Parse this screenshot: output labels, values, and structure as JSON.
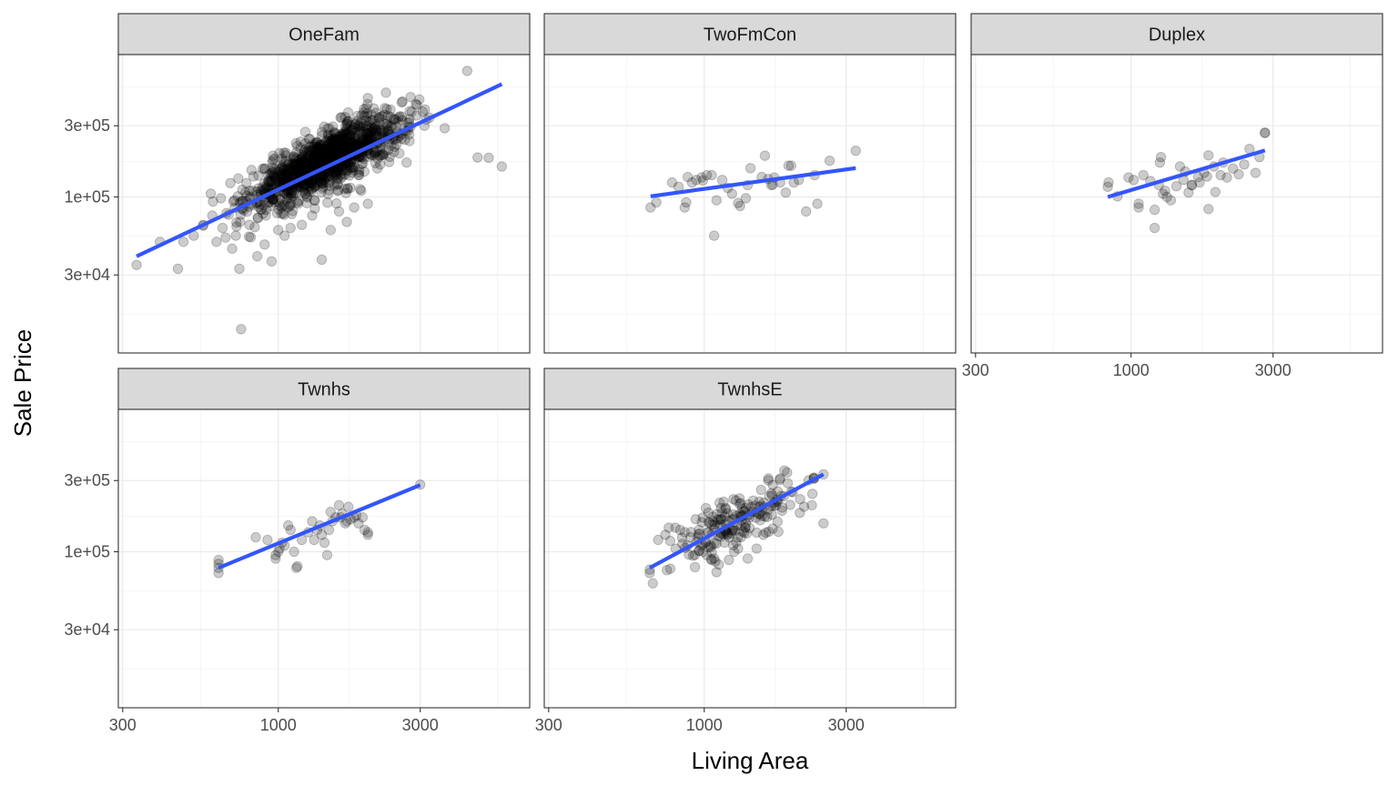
{
  "chart_data": {
    "type": "scatter",
    "facet_by": "Bldg_Type",
    "xlabel": "Living Area",
    "ylabel": "Sale Price",
    "x_scale": "log10",
    "y_scale": "log10",
    "xlim": [
      290,
      7000
    ],
    "ylim": [
      9000,
      900000
    ],
    "x_ticks": [
      300,
      1000,
      3000
    ],
    "x_tick_labels": [
      "300",
      "1000",
      "3000"
    ],
    "y_ticks": [
      30000,
      100000,
      300000
    ],
    "y_tick_labels": [
      "3e+04",
      "1e+05",
      "3e+05"
    ],
    "point_color": "#000000",
    "point_alpha": 0.2,
    "fit_line_color": "#3355ff",
    "fit_method": "lm",
    "panels": [
      {
        "name": "OneFam",
        "fit": {
          "x": [
            334,
            5642
          ],
          "y": [
            40000,
            570000
          ]
        },
        "cloud": {
          "n": 1150,
          "x_center": 1450,
          "x_log_sd": 0.13,
          "slope": 0.95,
          "y_anchor": 175000,
          "y_log_sd": 0.095
        },
        "points": [
          [
            5642,
            160000
          ],
          [
            5095,
            183000
          ],
          [
            4676,
            184000
          ],
          [
            4316,
            700000
          ],
          [
            3627,
            289000
          ],
          [
            3222,
            340000
          ],
          [
            2980,
            450000
          ],
          [
            2700,
            170000
          ],
          [
            2500,
            225000
          ],
          [
            2450,
            200000
          ],
          [
            2200,
            165000
          ],
          [
            2100,
            190000
          ],
          [
            3100,
            300000
          ],
          [
            2900,
            420000
          ],
          [
            2600,
            430000
          ],
          [
            2300,
            500000
          ],
          [
            2000,
            460000
          ],
          [
            334,
            35000
          ],
          [
            400,
            50000
          ],
          [
            460,
            33000
          ],
          [
            480,
            50000
          ],
          [
            520,
            55000
          ],
          [
            560,
            65000
          ],
          [
            600,
            75000
          ],
          [
            620,
            50000
          ],
          [
            650,
            62000
          ],
          [
            700,
            45000
          ],
          [
            720,
            55000
          ],
          [
            740,
            33000
          ],
          [
            750,
            13000
          ],
          [
            760,
            84000
          ],
          [
            800,
            65000
          ],
          [
            820,
            110000
          ],
          [
            850,
            40000
          ],
          [
            900,
            48000
          ],
          [
            950,
            37000
          ],
          [
            1000,
            60000
          ],
          [
            1050,
            55000
          ],
          [
            1100,
            62000
          ],
          [
            1200,
            65000
          ],
          [
            1300,
            75000
          ],
          [
            1400,
            38000
          ],
          [
            1500,
            60000
          ],
          [
            1600,
            80000
          ],
          [
            1800,
            85000
          ],
          [
            2000,
            90000
          ],
          [
            1700,
            68000
          ],
          [
            1900,
            110000
          ]
        ]
      },
      {
        "name": "TwoFmCon",
        "fit": {
          "x": [
            660,
            3230
          ],
          "y": [
            101000,
            156000
          ]
        },
        "points": [
          [
            660,
            85000
          ],
          [
            690,
            92000
          ],
          [
            780,
            125000
          ],
          [
            820,
            117000
          ],
          [
            860,
            85000
          ],
          [
            870,
            92000
          ],
          [
            880,
            136000
          ],
          [
            910,
            125000
          ],
          [
            940,
            130000
          ],
          [
            980,
            135000
          ],
          [
            990,
            129000
          ],
          [
            1020,
            140000
          ],
          [
            1060,
            140000
          ],
          [
            1080,
            55000
          ],
          [
            1100,
            95000
          ],
          [
            1150,
            130000
          ],
          [
            1200,
            115000
          ],
          [
            1240,
            105000
          ],
          [
            1300,
            91000
          ],
          [
            1320,
            87000
          ],
          [
            1380,
            98000
          ],
          [
            1400,
            120000
          ],
          [
            1430,
            156000
          ],
          [
            1560,
            136000
          ],
          [
            1600,
            189000
          ],
          [
            1640,
            132000
          ],
          [
            1680,
            120000
          ],
          [
            1700,
            121000
          ],
          [
            1720,
            135000
          ],
          [
            1800,
            125000
          ],
          [
            1880,
            107000
          ],
          [
            1920,
            162000
          ],
          [
            1960,
            162000
          ],
          [
            2000,
            125000
          ],
          [
            2080,
            130000
          ],
          [
            2200,
            80000
          ],
          [
            2350,
            140000
          ],
          [
            2400,
            90000
          ],
          [
            2640,
            175000
          ],
          [
            3230,
            204000
          ]
        ]
      },
      {
        "name": "Duplex",
        "fit": {
          "x": [
            835,
            2818
          ],
          "y": [
            100000,
            205000
          ]
        },
        "points": [
          [
            835,
            117000
          ],
          [
            840,
            125000
          ],
          [
            900,
            101000
          ],
          [
            980,
            135000
          ],
          [
            1020,
            130000
          ],
          [
            1060,
            90000
          ],
          [
            1060,
            85000
          ],
          [
            1100,
            140000
          ],
          [
            1160,
            128000
          ],
          [
            1200,
            82000
          ],
          [
            1200,
            62000
          ],
          [
            1240,
            120000
          ],
          [
            1250,
            170000
          ],
          [
            1260,
            185000
          ],
          [
            1280,
            105000
          ],
          [
            1300,
            110000
          ],
          [
            1320,
            100000
          ],
          [
            1360,
            95000
          ],
          [
            1420,
            118000
          ],
          [
            1460,
            160000
          ],
          [
            1500,
            130000
          ],
          [
            1520,
            148000
          ],
          [
            1560,
            107000
          ],
          [
            1600,
            120000
          ],
          [
            1600,
            120000
          ],
          [
            1680,
            136000
          ],
          [
            1700,
            125000
          ],
          [
            1760,
            145000
          ],
          [
            1800,
            137000
          ],
          [
            1820,
            83000
          ],
          [
            1820,
            190000
          ],
          [
            1900,
            160000
          ],
          [
            1920,
            108000
          ],
          [
            2000,
            140000
          ],
          [
            2040,
            170000
          ],
          [
            2100,
            135000
          ],
          [
            2200,
            155000
          ],
          [
            2300,
            142000
          ],
          [
            2400,
            165000
          ],
          [
            2500,
            210000
          ],
          [
            2620,
            145000
          ],
          [
            2700,
            185000
          ],
          [
            2818,
            268000
          ],
          [
            2818,
            270000
          ]
        ]
      },
      {
        "name": "Twnhs",
        "fit": {
          "x": [
            630,
            3000
          ],
          "y": [
            78000,
            280000
          ]
        },
        "points": [
          [
            630,
            72000
          ],
          [
            630,
            78000
          ],
          [
            630,
            83000
          ],
          [
            630,
            88000
          ],
          [
            840,
            125000
          ],
          [
            920,
            120000
          ],
          [
            980,
            95000
          ],
          [
            980,
            90000
          ],
          [
            1000,
            100000
          ],
          [
            1010,
            105000
          ],
          [
            1030,
            115000
          ],
          [
            1050,
            110000
          ],
          [
            1080,
            150000
          ],
          [
            1100,
            140000
          ],
          [
            1130,
            100000
          ],
          [
            1150,
            78000
          ],
          [
            1160,
            80000
          ],
          [
            1200,
            120000
          ],
          [
            1260,
            135000
          ],
          [
            1300,
            160000
          ],
          [
            1320,
            120000
          ],
          [
            1350,
            140000
          ],
          [
            1380,
            150000
          ],
          [
            1400,
            130000
          ],
          [
            1430,
            115000
          ],
          [
            1460,
            95000
          ],
          [
            1480,
            140000
          ],
          [
            1500,
            185000
          ],
          [
            1520,
            160000
          ],
          [
            1560,
            170000
          ],
          [
            1600,
            205000
          ],
          [
            1620,
            170000
          ],
          [
            1640,
            180000
          ],
          [
            1680,
            155000
          ],
          [
            1700,
            160000
          ],
          [
            1720,
            200000
          ],
          [
            1750,
            165000
          ],
          [
            1800,
            170000
          ],
          [
            1830,
            175000
          ],
          [
            1860,
            155000
          ],
          [
            1920,
            170000
          ],
          [
            1950,
            140000
          ],
          [
            2000,
            130000
          ],
          [
            2000,
            135000
          ],
          [
            3000,
            282000
          ]
        ]
      },
      {
        "name": "TwnhsE",
        "fit": {
          "x": [
            656,
            2516
          ],
          "y": [
            78000,
            330000
          ]
        },
        "cloud": {
          "n": 170,
          "x_center": 1320,
          "x_log_sd": 0.11,
          "slope": 1.0,
          "y_anchor": 165000,
          "y_log_sd": 0.09
        },
        "points": [
          [
            656,
            72000
          ],
          [
            656,
            76000
          ],
          [
            700,
            120000
          ],
          [
            740,
            130000
          ],
          [
            760,
            145000
          ],
          [
            800,
            145000
          ],
          [
            830,
            140000
          ],
          [
            860,
            135000
          ],
          [
            880,
            110000
          ],
          [
            900,
            125000
          ],
          [
            930,
            95000
          ],
          [
            960,
            140000
          ],
          [
            990,
            100000
          ],
          [
            1020,
            95000
          ],
          [
            1060,
            88000
          ],
          [
            1080,
            90000
          ],
          [
            1090,
            86000
          ],
          [
            1100,
            73000
          ],
          [
            1120,
            82000
          ],
          [
            1200,
            130000
          ],
          [
            1260,
            100000
          ],
          [
            1300,
            105000
          ],
          [
            1400,
            90000
          ],
          [
            1500,
            105000
          ],
          [
            1580,
            130000
          ],
          [
            1700,
            280000
          ],
          [
            1800,
            310000
          ],
          [
            1860,
            350000
          ],
          [
            1900,
            340000
          ],
          [
            2100,
            225000
          ],
          [
            2300,
            205000
          ],
          [
            2516,
            330000
          ],
          [
            2516,
            155000
          ]
        ]
      }
    ]
  }
}
